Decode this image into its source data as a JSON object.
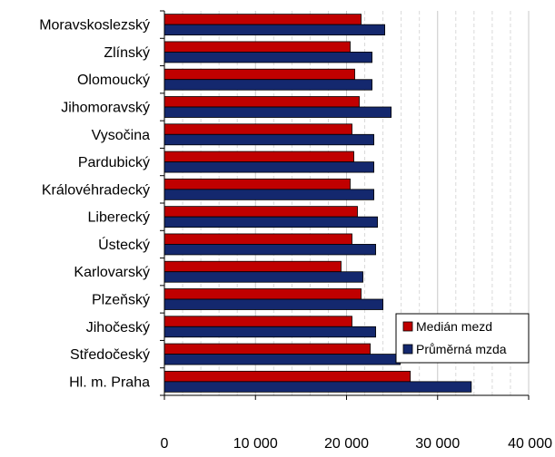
{
  "chart_data": {
    "type": "bar",
    "orientation": "horizontal",
    "categories": [
      "Moravskoslezský",
      "Zlínský",
      "Olomoucký",
      "Jihomoravský",
      "Vysočina",
      "Pardubický",
      "Královéhradecký",
      "Liberecký",
      "Ústecký",
      "Karlovarský",
      "Plzeňský",
      "Jihočeský",
      "Středočeský",
      "Hl. m. Praha"
    ],
    "series": [
      {
        "name": "Medián mezd",
        "color": "#c00000",
        "values": [
          21600,
          20400,
          20900,
          21400,
          20600,
          20800,
          20400,
          21200,
          20600,
          19400,
          21600,
          20600,
          22600,
          27000
        ]
      },
      {
        "name": "Průměrná mzda",
        "color": "#14286e",
        "values": [
          24200,
          22800,
          22800,
          24900,
          23000,
          23000,
          23000,
          23400,
          23200,
          21800,
          24000,
          23200,
          25900,
          33700
        ]
      }
    ],
    "xlim": [
      0,
      40000
    ],
    "xticks": [
      "0",
      "10 000",
      "20 000",
      "30 000",
      "40 000"
    ],
    "grid": true,
    "legend_position": "bottom-right"
  }
}
